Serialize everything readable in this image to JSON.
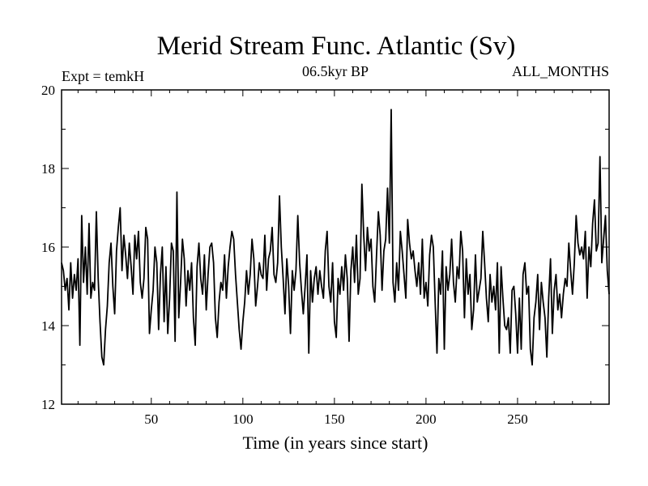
{
  "chart_data": {
    "type": "line",
    "title": "Merid Stream Func. Atlantic (Sv)",
    "subtitle_left": "Expt = temkH",
    "subtitle_center": "06.5kyr BP",
    "subtitle_right": "ALL_MONTHS",
    "xlabel": "Time (in years since start)",
    "ylabel": "",
    "xlim": [
      1,
      300
    ],
    "ylim": [
      12,
      20
    ],
    "x_ticks": [
      50,
      100,
      150,
      200,
      250
    ],
    "y_ticks": [
      12,
      14,
      16,
      18,
      20
    ],
    "x_start": 1,
    "x_step": 1,
    "series": [
      {
        "name": "Merid Stream Func. Atlantic",
        "color": "#000000",
        "values": [
          15.6,
          15.4,
          14.9,
          15.2,
          14.4,
          15.6,
          14.7,
          15.3,
          14.9,
          15.7,
          13.5,
          16.8,
          15.1,
          16.0,
          14.8,
          16.6,
          14.7,
          15.1,
          14.9,
          16.9,
          15.2,
          14.1,
          13.2,
          13.0,
          13.9,
          14.5,
          15.6,
          16.1,
          15.0,
          14.3,
          15.9,
          16.5,
          17.0,
          15.4,
          16.3,
          15.8,
          15.2,
          16.1,
          15.5,
          14.8,
          16.3,
          15.7,
          16.4,
          15.1,
          14.7,
          15.2,
          16.5,
          16.2,
          13.8,
          14.4,
          14.9,
          16.0,
          15.6,
          13.9,
          15.3,
          16.0,
          14.1,
          15.5,
          13.8,
          14.7,
          16.1,
          15.9,
          13.6,
          17.4,
          14.2,
          15.1,
          16.2,
          15.7,
          14.5,
          15.4,
          14.9,
          15.6,
          14.2,
          13.5,
          15.5,
          16.1,
          15.2,
          14.8,
          15.8,
          14.4,
          15.3,
          16.0,
          16.1,
          15.6,
          14.2,
          13.7,
          14.6,
          15.1,
          14.9,
          15.8,
          14.7,
          15.5,
          16.0,
          16.4,
          16.2,
          15.3,
          14.6,
          13.9,
          13.4,
          14.1,
          14.6,
          15.4,
          14.8,
          15.3,
          16.2,
          15.7,
          14.5,
          15.0,
          15.6,
          15.3,
          15.2,
          16.3,
          14.9,
          15.7,
          15.9,
          16.5,
          15.3,
          15.1,
          15.6,
          17.3,
          16.0,
          15.2,
          14.3,
          15.7,
          15.0,
          13.8,
          15.4,
          14.9,
          15.4,
          16.8,
          15.6,
          14.9,
          14.3,
          15.0,
          15.8,
          13.3,
          15.4,
          14.6,
          15.2,
          15.5,
          14.8,
          15.4,
          15.0,
          14.7,
          15.9,
          16.4,
          15.0,
          14.6,
          15.6,
          14.1,
          13.7,
          15.2,
          14.8,
          15.5,
          14.9,
          15.8,
          15.2,
          13.6,
          15.4,
          16.0,
          15.1,
          16.3,
          14.8,
          15.2,
          17.6,
          16.3,
          15.4,
          16.5,
          15.9,
          16.2,
          15.0,
          14.6,
          15.8,
          16.9,
          16.3,
          14.9,
          15.9,
          16.2,
          17.5,
          16.1,
          19.5,
          15.1,
          14.6,
          15.6,
          14.9,
          16.4,
          15.9,
          15.3,
          14.7,
          16.7,
          16.1,
          15.7,
          15.9,
          15.4,
          15.0,
          15.6,
          14.8,
          16.2,
          14.7,
          15.1,
          14.5,
          15.8,
          16.3,
          16.0,
          14.6,
          13.3,
          15.2,
          14.8,
          15.9,
          13.4,
          15.5,
          14.9,
          15.3,
          16.2,
          15.1,
          14.6,
          15.5,
          15.2,
          16.4,
          15.9,
          14.2,
          15.7,
          14.8,
          15.3,
          13.9,
          14.4,
          15.8,
          14.6,
          14.9,
          15.2,
          16.4,
          15.6,
          14.7,
          14.1,
          15.3,
          14.6,
          15.0,
          14.4,
          15.6,
          13.3,
          15.5,
          14.7,
          14.0,
          13.9,
          14.2,
          13.3,
          14.9,
          15.0,
          14.3,
          13.3,
          14.7,
          13.4,
          15.3,
          15.6,
          14.8,
          15.0,
          13.4,
          13.0,
          14.2,
          14.6,
          15.3,
          13.9,
          15.1,
          14.6,
          14.2,
          13.2,
          14.7,
          15.7,
          13.8,
          14.9,
          15.3,
          14.4,
          14.8,
          14.2,
          14.8,
          15.2,
          15.0,
          16.1,
          15.4,
          14.8,
          15.6,
          16.8,
          16.1,
          15.8,
          16.0,
          15.7,
          16.4,
          14.7,
          16.0,
          15.5,
          16.6,
          17.2,
          15.9,
          16.1,
          18.3,
          15.6,
          16.2,
          16.8,
          15.4,
          14.8
        ]
      }
    ]
  }
}
